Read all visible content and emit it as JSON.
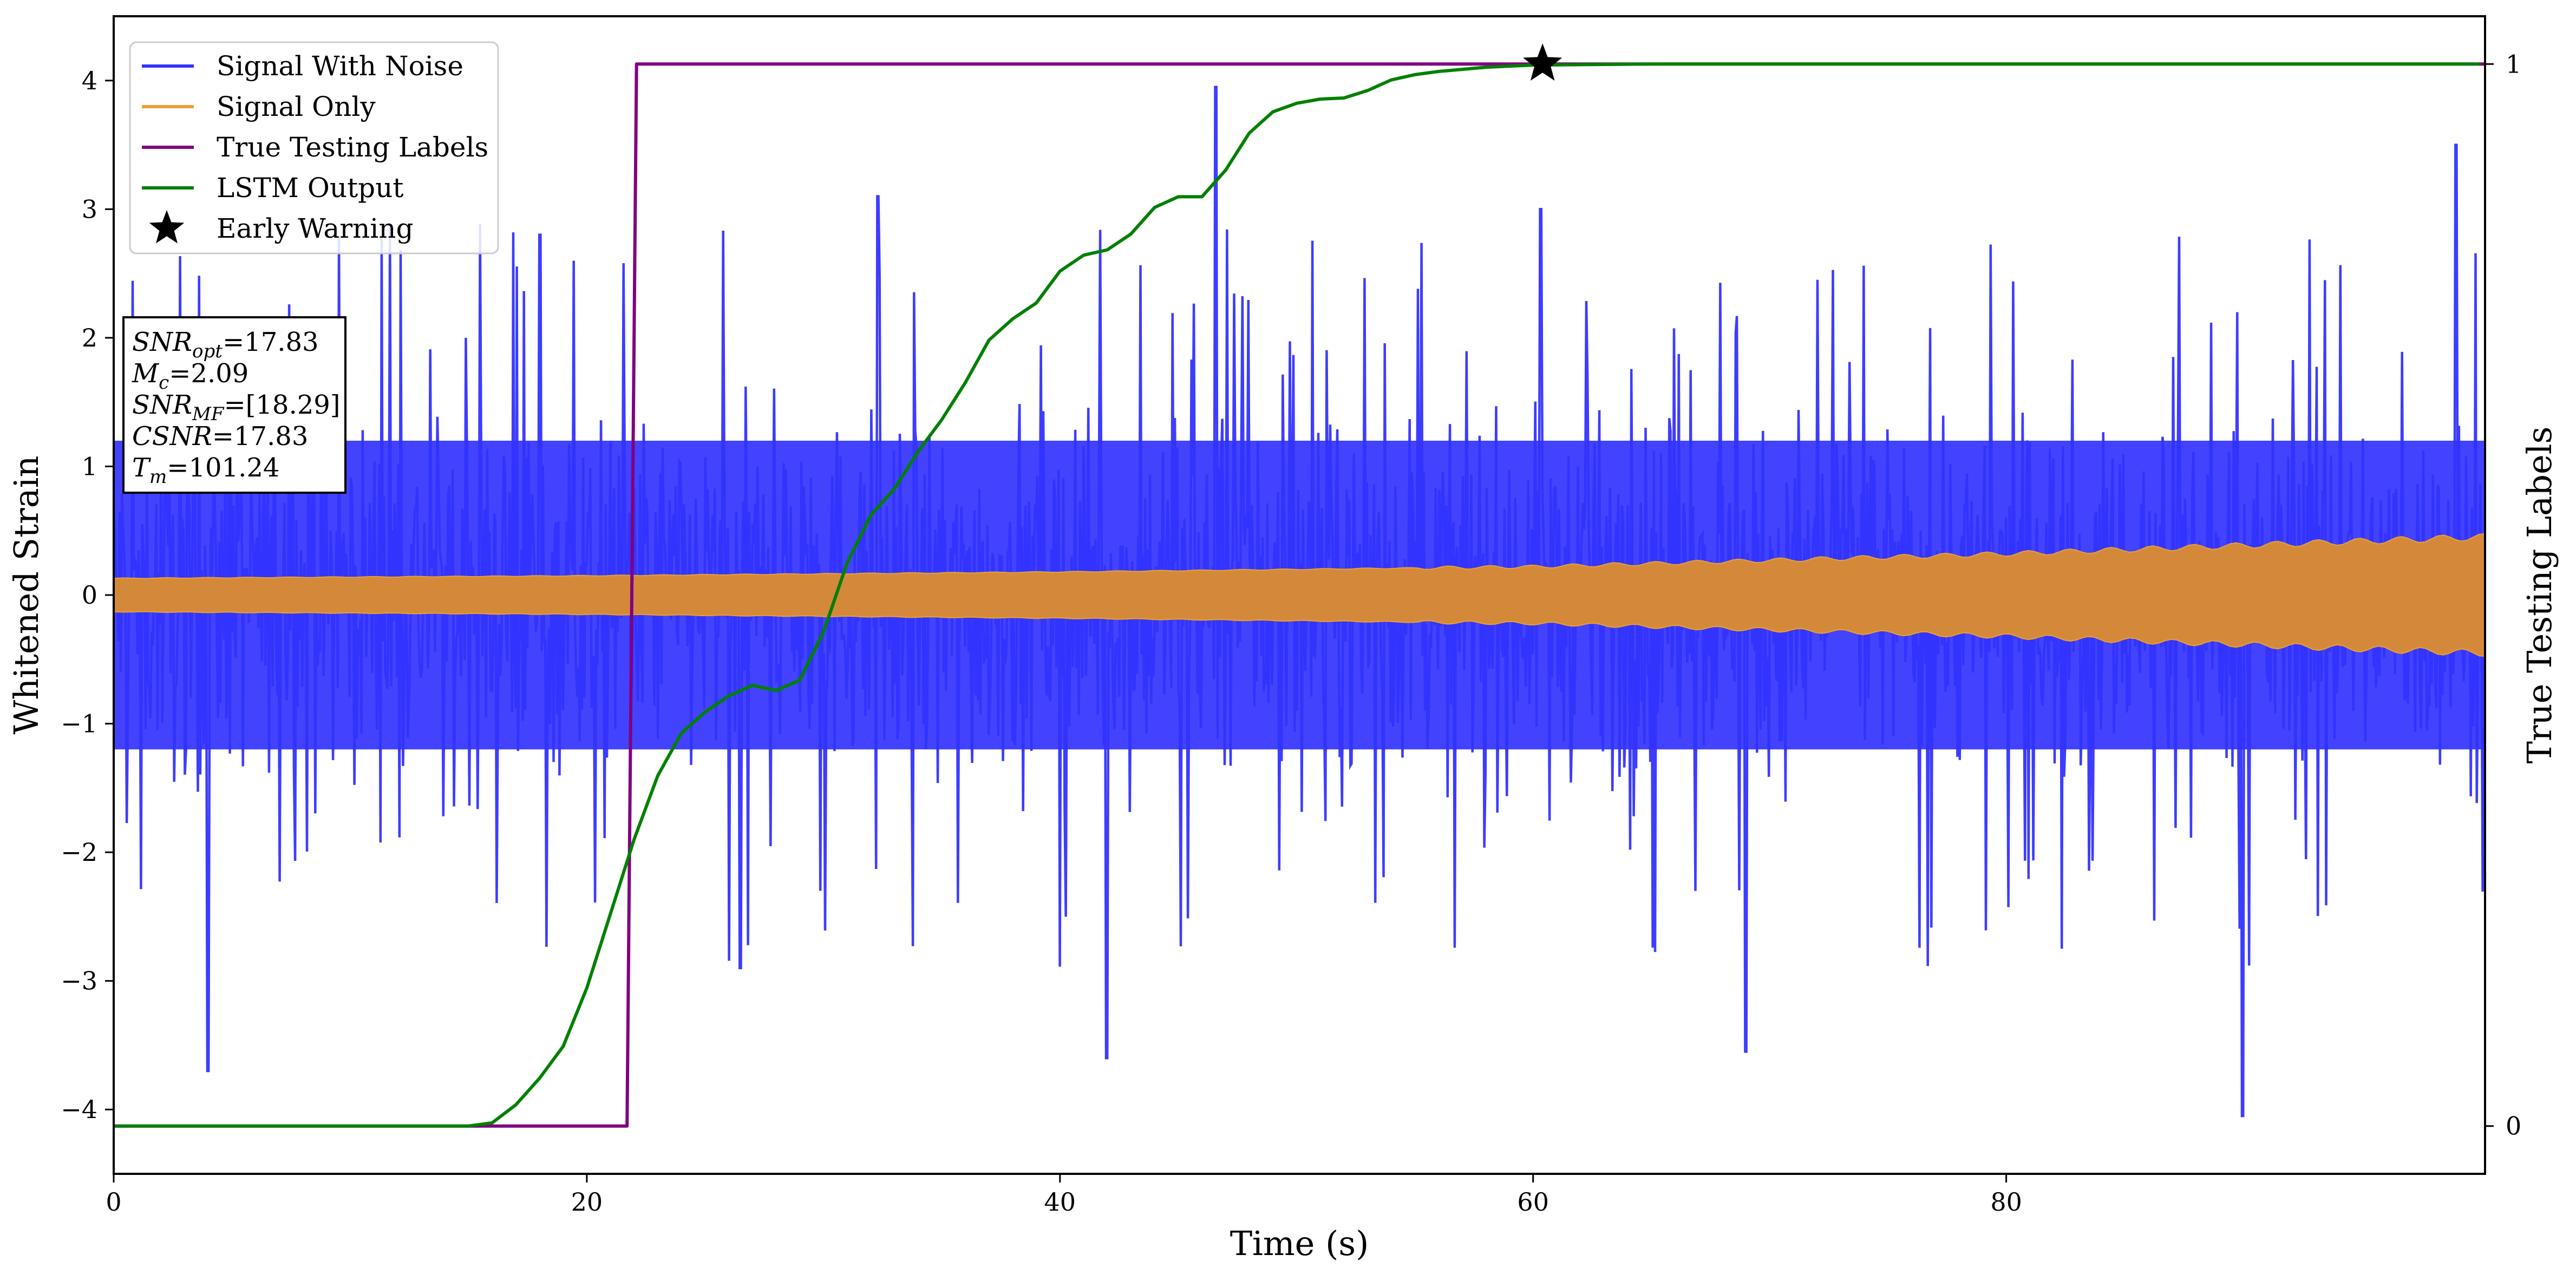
{
  "chart_data": {
    "type": "line",
    "xlabel": "Time (s)",
    "ylabel": "Whitened Strain",
    "y2label": "True Testing Labels",
    "xlim": [
      0,
      100.24
    ],
    "ylim": [
      -4.5,
      4.5
    ],
    "y2lim": [
      -0.045,
      1.045
    ],
    "x_ticks": [
      "0",
      "20",
      "40",
      "60",
      "80"
    ],
    "x_tick_values": [
      0,
      20,
      40,
      60,
      80
    ],
    "y_ticks": [
      "−4",
      "−3",
      "−2",
      "−1",
      "0",
      "1",
      "2",
      "3",
      "4"
    ],
    "y_tick_values": [
      -4,
      -3,
      -2,
      -1,
      0,
      1,
      2,
      3,
      4
    ],
    "y2_ticks": [
      "0",
      "1"
    ],
    "y2_tick_values": [
      0,
      1
    ],
    "grid": false,
    "legend_position": "top-left",
    "legend": [
      "Signal With Noise",
      "Signal Only",
      "True Testing Labels",
      "LSTM Output",
      "Early Warning"
    ],
    "series": [
      {
        "name": "Signal With Noise",
        "color": "#3333ff",
        "kind": "noise",
        "band_core": 1.2,
        "spike_peaks": [
          [
            4,
            -3.7
          ],
          [
            18,
            2.8
          ],
          [
            26.5,
            -2.9
          ],
          [
            32.3,
            3.1
          ],
          [
            46.6,
            3.95
          ],
          [
            42,
            -3.6
          ],
          [
            60.3,
            3.0
          ],
          [
            69,
            -3.55
          ],
          [
            90,
            -4.05
          ],
          [
            99,
            3.5
          ]
        ]
      },
      {
        "name": "Signal Only",
        "color": "#e8a030",
        "kind": "envelope",
        "amplitude": [
          [
            0,
            0.13
          ],
          [
            20,
            0.15
          ],
          [
            40,
            0.18
          ],
          [
            60,
            0.22
          ],
          [
            80,
            0.32
          ],
          [
            100,
            0.45
          ]
        ]
      },
      {
        "name": "True Testing Labels",
        "color": "#800080",
        "axis": "right",
        "x": [
          0,
          21.7,
          22.1,
          100.24
        ],
        "y": [
          0,
          0,
          1,
          1
        ]
      },
      {
        "name": "LSTM Output",
        "color": "#008000",
        "axis": "right",
        "x": [
          0,
          15,
          16,
          17,
          18,
          19,
          20,
          21,
          22,
          23,
          24,
          25,
          26,
          27,
          28,
          29,
          30,
          31,
          32,
          33,
          34,
          35,
          36,
          37,
          38,
          39,
          40,
          41,
          42,
          43,
          44,
          45,
          46,
          47,
          48,
          49,
          50,
          51,
          52,
          53,
          54,
          55,
          56,
          58,
          60,
          65,
          70,
          80,
          90,
          100
        ],
        "y": [
          0,
          0,
          0.003,
          0.02,
          0.045,
          0.075,
          0.13,
          0.2,
          0.27,
          0.33,
          0.37,
          0.39,
          0.405,
          0.415,
          0.41,
          0.42,
          0.465,
          0.53,
          0.575,
          0.6,
          0.635,
          0.665,
          0.7,
          0.74,
          0.76,
          0.775,
          0.805,
          0.82,
          0.825,
          0.84,
          0.865,
          0.875,
          0.875,
          0.9,
          0.935,
          0.955,
          0.963,
          0.967,
          0.968,
          0.975,
          0.985,
          0.99,
          0.993,
          0.997,
          0.999,
          1,
          1,
          1,
          1,
          1
        ]
      },
      {
        "name": "Early Warning",
        "color": "#000000",
        "axis": "right",
        "kind": "marker",
        "x": [
          60.4
        ],
        "y": [
          1.0
        ]
      }
    ],
    "annotation": {
      "lines": [
        {
          "var": "SNR",
          "sub": "opt",
          "value": "=17.83"
        },
        {
          "var": "M",
          "sub": "c",
          "value": "=2.09"
        },
        {
          "var": "SNR",
          "sub": "MF",
          "value": "=[18.29]"
        },
        {
          "var": "CSNR",
          "sub": "",
          "value": "=17.83"
        },
        {
          "var": "T",
          "sub": "m",
          "value": "=101.24"
        }
      ]
    }
  }
}
